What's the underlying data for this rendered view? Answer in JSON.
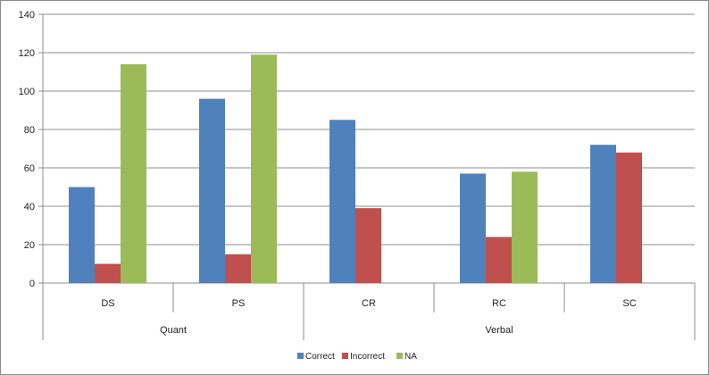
{
  "chart_data": {
    "type": "bar",
    "title": "",
    "xlabel": "",
    "ylabel": "",
    "ylim": [
      0,
      140
    ],
    "y_ticks": [
      "0",
      "20",
      "40",
      "60",
      "80",
      "100",
      "120",
      "140"
    ],
    "grid": true,
    "legend_position": "bottom",
    "groups": [
      {
        "label": "Quant",
        "categories": [
          "DS",
          "PS"
        ]
      },
      {
        "label": "Verbal",
        "categories": [
          "CR",
          "RC",
          "SC"
        ]
      }
    ],
    "categories": [
      "DS",
      "PS",
      "CR",
      "RC",
      "SC"
    ],
    "series": [
      {
        "name": "Correct",
        "color": "#4f81bd",
        "values": [
          50,
          96,
          85,
          57,
          72
        ]
      },
      {
        "name": "Incorrect",
        "color": "#c0504d",
        "values": [
          10,
          15,
          39,
          24,
          68
        ]
      },
      {
        "name": "NA",
        "color": "#9bbb59",
        "values": [
          114,
          119,
          null,
          58,
          null
        ]
      }
    ]
  }
}
